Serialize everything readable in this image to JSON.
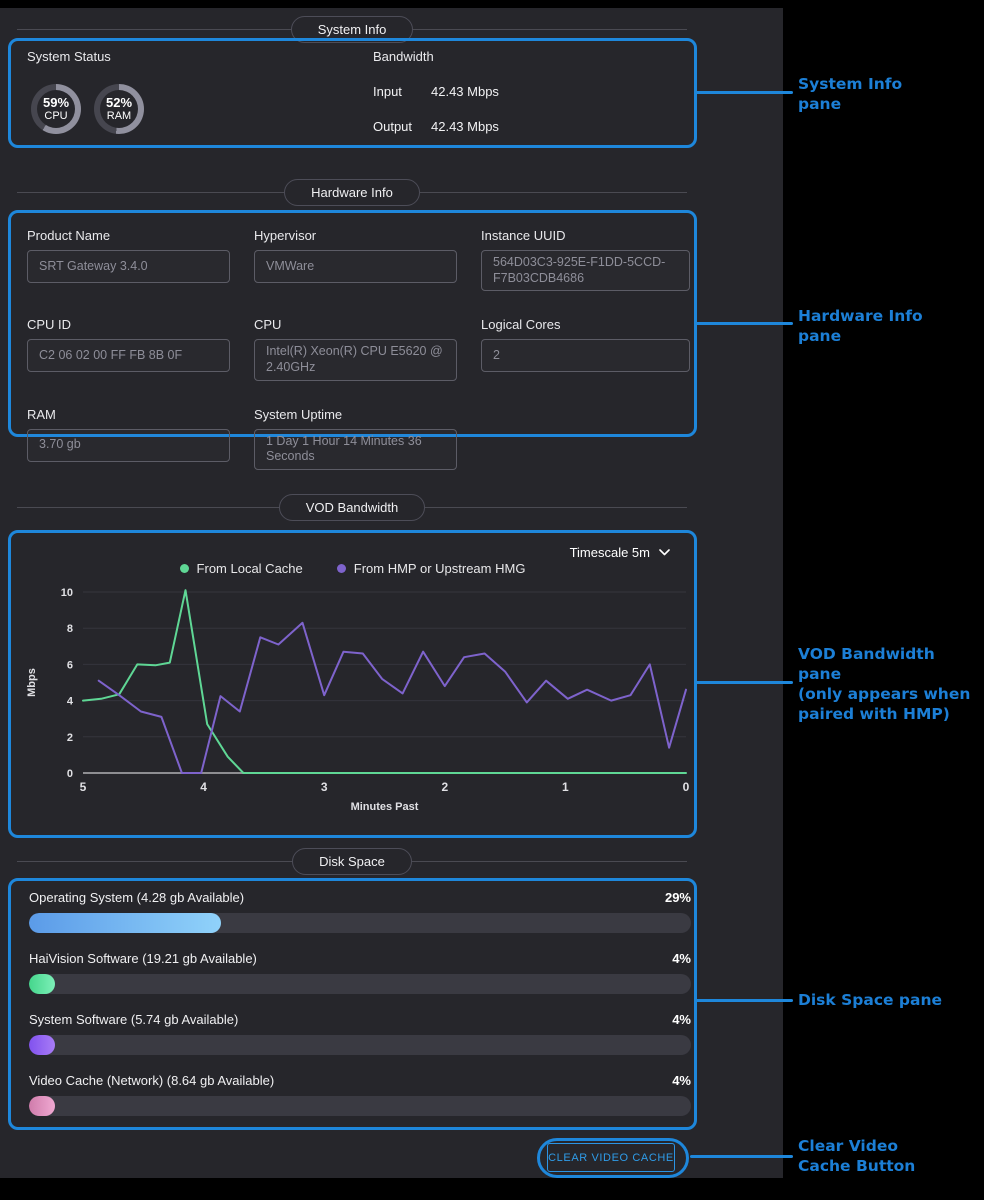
{
  "accent": "#1e87db",
  "annotation_text_color": "#1c7fd6",
  "panes": {
    "system": {
      "title": "System Info",
      "status_label": "System Status",
      "gauge_ring_on": "#90909e",
      "gauge_ring_off": "#46464f",
      "gauges": [
        {
          "value": 59,
          "pct_label": "59%",
          "label": "CPU"
        },
        {
          "value": 52,
          "pct_label": "52%",
          "label": "RAM"
        }
      ],
      "bandwidth": {
        "title": "Bandwidth",
        "rows": [
          {
            "label": "Input",
            "value": "42.43 Mbps"
          },
          {
            "label": "Output",
            "value": "42.43 Mbps"
          }
        ]
      }
    },
    "hardware": {
      "title": "Hardware Info",
      "fields": [
        {
          "label": "Product Name",
          "value": "SRT Gateway 3.4.0"
        },
        {
          "label": "Hypervisor",
          "value": "VMWare"
        },
        {
          "label": "Instance UUID",
          "value": "564D03C3-925E-F1DD-5CCD-F7B03CDB4686"
        },
        {
          "label": "CPU ID",
          "value": "C2 06 02 00 FF FB 8B 0F"
        },
        {
          "label": "CPU",
          "value": "Intel(R) Xeon(R) CPU E5620 @ 2.40GHz"
        },
        {
          "label": "Logical Cores",
          "value": "2"
        },
        {
          "label": "RAM",
          "value": "3.70 gb"
        },
        {
          "label": "System Uptime",
          "value": "1 Day 1 Hour 14 Minutes 36 Seconds"
        }
      ]
    },
    "vod": {
      "title": "VOD Bandwidth",
      "timescale_label": "Timescale 5m"
    },
    "disk": {
      "title": "Disk Space",
      "items": [
        {
          "label": "Operating System (4.28 gb Available)",
          "percent": 29,
          "percent_label": "29%",
          "color_start": "#5b9be8",
          "color_end": "#90d2fa"
        },
        {
          "label": "HaiVision Software (19.21 gb Available)",
          "percent": 4,
          "percent_label": "4%",
          "color_start": "#45d68c",
          "color_end": "#7defb8"
        },
        {
          "label": "System Software (5.74 gb Available)",
          "percent": 4,
          "percent_label": "4%",
          "color_start": "#8152ee",
          "color_end": "#a87cf6"
        },
        {
          "label": "Video Cache (Network) (8.64 gb Available)",
          "percent": 4,
          "percent_label": "4%",
          "color_start": "#cf7cab",
          "color_end": "#f0a9d2"
        }
      ]
    },
    "clear_button_label": "CLEAR VIDEO CACHE"
  },
  "chart_data": {
    "type": "line",
    "title": "VOD Bandwidth",
    "xlabel": "Minutes Past",
    "ylabel": "Mbps",
    "xlim": [
      5,
      0
    ],
    "ylim": [
      0,
      10
    ],
    "x_ticks": [
      5,
      4,
      3,
      2,
      1,
      0
    ],
    "y_ticks": [
      0,
      2,
      4,
      6,
      8,
      10
    ],
    "grid": true,
    "legend_position": "top",
    "series": [
      {
        "name": "From Local Cache",
        "color": "#5fd795",
        "points": [
          [
            5,
            4.0
          ],
          [
            4.85,
            4.1
          ],
          [
            4.7,
            4.35
          ],
          [
            4.55,
            6.0
          ],
          [
            4.4,
            5.95
          ],
          [
            4.28,
            6.1
          ],
          [
            4.15,
            10.1
          ],
          [
            3.97,
            2.7
          ],
          [
            3.8,
            0.9
          ],
          [
            3.67,
            0
          ],
          [
            3.3,
            0
          ],
          [
            3.0,
            0
          ],
          [
            2.6,
            0
          ],
          [
            2.2,
            0
          ],
          [
            1.8,
            0
          ],
          [
            1.4,
            0
          ],
          [
            1.0,
            0
          ],
          [
            0.6,
            0
          ],
          [
            0.3,
            0
          ],
          [
            0,
            0
          ]
        ]
      },
      {
        "name": "From HMP or Upstream HMG",
        "color": "#7e63cc",
        "points": [
          [
            4.87,
            5.1
          ],
          [
            4.7,
            4.3
          ],
          [
            4.52,
            3.4
          ],
          [
            4.35,
            3.1
          ],
          [
            4.18,
            0
          ],
          [
            4.02,
            0
          ],
          [
            3.86,
            4.25
          ],
          [
            3.7,
            3.4
          ],
          [
            3.53,
            7.5
          ],
          [
            3.38,
            7.1
          ],
          [
            3.18,
            8.3
          ],
          [
            3.0,
            4.3
          ],
          [
            2.84,
            6.7
          ],
          [
            2.68,
            6.6
          ],
          [
            2.52,
            5.2
          ],
          [
            2.35,
            4.4
          ],
          [
            2.18,
            6.7
          ],
          [
            2.0,
            4.8
          ],
          [
            1.84,
            6.4
          ],
          [
            1.67,
            6.6
          ],
          [
            1.5,
            5.6
          ],
          [
            1.32,
            3.9
          ],
          [
            1.16,
            5.1
          ],
          [
            0.98,
            4.1
          ],
          [
            0.82,
            4.6
          ],
          [
            0.62,
            4.0
          ],
          [
            0.46,
            4.3
          ],
          [
            0.3,
            6.0
          ],
          [
            0.14,
            1.4
          ],
          [
            0,
            4.6
          ]
        ]
      }
    ]
  },
  "annotations": {
    "items": [
      {
        "lines": [
          "System Info",
          "pane"
        ]
      },
      {
        "lines": [
          "Hardware Info",
          "pane"
        ]
      },
      {
        "lines": [
          "VOD Bandwidth",
          "pane",
          "(only appears when",
          "paired with HMP)"
        ]
      },
      {
        "lines": [
          "Disk Space pane"
        ]
      },
      {
        "lines": [
          "Clear Video",
          "Cache Button"
        ]
      }
    ]
  }
}
